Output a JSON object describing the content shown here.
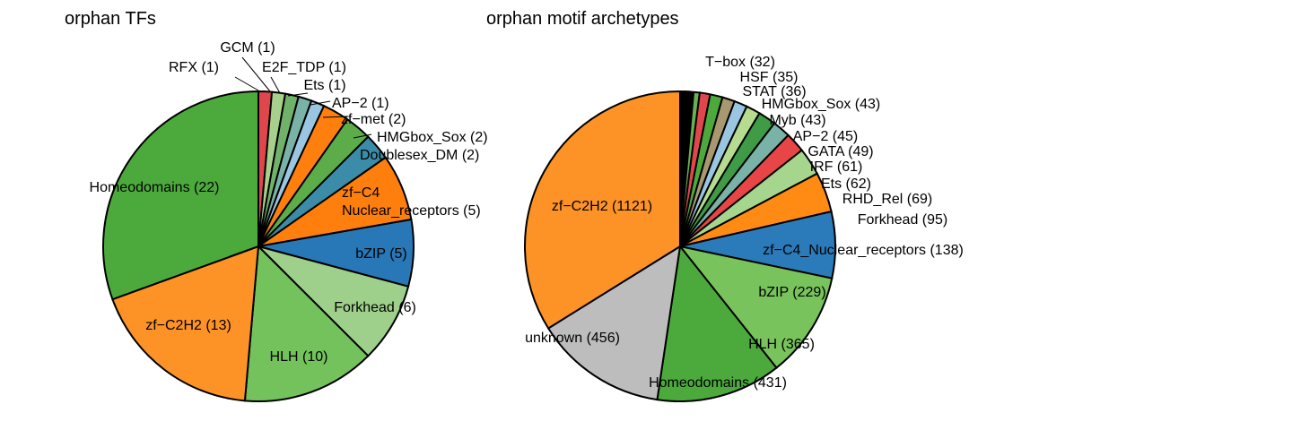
{
  "chart_data": [
    {
      "type": "pie",
      "title": "orphan TFs",
      "slices": [
        {
          "label": "RFX (1)",
          "value": 1,
          "color": "#e0474c"
        },
        {
          "label": "GCM (1)",
          "value": 1,
          "color": "#a8d08d"
        },
        {
          "label": "E2F_TDP (1)",
          "value": 1,
          "color": "#71b26a"
        },
        {
          "label": "Ets (1)",
          "value": 1,
          "color": "#79b2a6"
        },
        {
          "label": "AP-2 (1)",
          "value": 1,
          "color": "#9ac6e2"
        },
        {
          "label": "zf-met (2)",
          "value": 2,
          "color": "#ff7f0e"
        },
        {
          "label": "HMGbox_Sox (2)",
          "value": 2,
          "color": "#5cad4a"
        },
        {
          "label": "Doublesex_DM (2)",
          "value": 2,
          "color": "#3b8ca8"
        },
        {
          "label": "zf-C4 Nuclear_receptors (5)",
          "value": 5,
          "color": "#ff7f0e"
        },
        {
          "label": "bZIP (5)",
          "value": 5,
          "color": "#2878b8"
        },
        {
          "label": "Forkhead (6)",
          "value": 6,
          "color": "#9ed08b"
        },
        {
          "label": "HLH (10)",
          "value": 10,
          "color": "#74c25c"
        },
        {
          "label": "zf-C2H2 (13)",
          "value": 13,
          "color": "#fd9326"
        },
        {
          "label": "Homeodomains (22)",
          "value": 22,
          "color": "#4caa3d"
        }
      ]
    },
    {
      "type": "pie",
      "title": "orphan motif archetypes",
      "slices": [
        {
          "label": "T-box (32)",
          "value": 32,
          "color": "#c94a4a"
        },
        {
          "label": "HSF (35)",
          "value": 35,
          "color": "#6ab04c"
        },
        {
          "label": "STAT (36)",
          "value": 36,
          "color": "#e0474c"
        },
        {
          "label": "HMGbox_Sox (43)",
          "value": 43,
          "color": "#4caa3d"
        },
        {
          "label": "Myb (43)",
          "value": 43,
          "color": "#a89870"
        },
        {
          "label": "AP-2 (45)",
          "value": 45,
          "color": "#9ac6e2"
        },
        {
          "label": "GATA (49)",
          "value": 49,
          "color": "#b7dc8f"
        },
        {
          "label": "IRF (61)",
          "value": 61,
          "color": "#3f9b45"
        },
        {
          "label": "Ets (62)",
          "value": 62,
          "color": "#79b2a6"
        },
        {
          "label": "RHD_Rel (69)",
          "value": 69,
          "color": "#e84547"
        },
        {
          "label": "Forkhead (95)",
          "value": 95,
          "color": "#a6d68e"
        },
        {
          "label": "zf-C4_Nuclear_receptors (138)",
          "value": 138,
          "color": "#ff8a14"
        },
        {
          "label": "bZIP (229)",
          "value": 229,
          "color": "#2b7bba"
        },
        {
          "label": "HLH (365)",
          "value": 365,
          "color": "#78c35c"
        },
        {
          "label": "Homeodomains (431)",
          "value": 431,
          "color": "#4caa3d"
        },
        {
          "label": "unknown (456)",
          "value": 456,
          "color": "#bdbdbd"
        },
        {
          "label": "zf-C2H2 (1121)",
          "value": 1121,
          "color": "#fd9326"
        }
      ]
    }
  ]
}
